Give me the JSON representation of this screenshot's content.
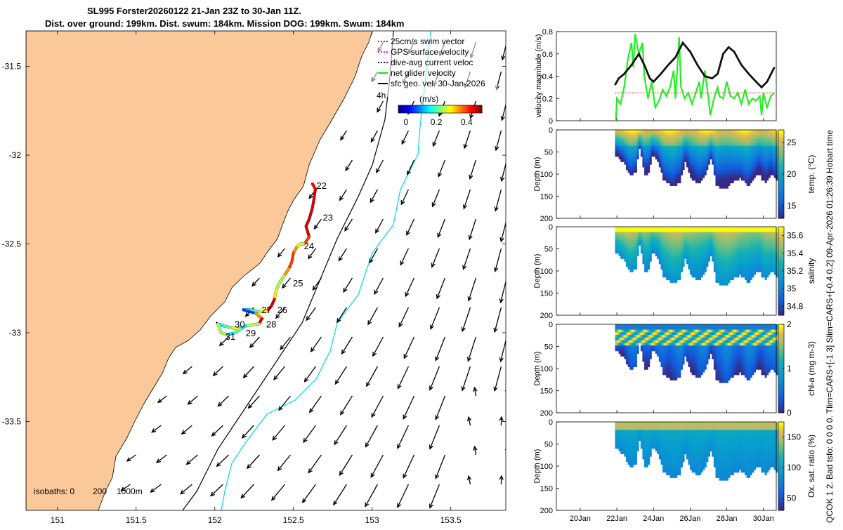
{
  "title_line1": "SL995 Forster20260122 21-Jan 23Z to 30-Jan 11Z.",
  "title_line2": "Dist. over ground: 199km. Dist. swum: 184km. Mission DOG: 199km. Swum: 184km",
  "right_margin_text": "QCOK 1  2. Bad tsfo: 0  0  0  0. Tlim=CARS+[-1 3] Slim=CARS+[-0.4 0.2] 09-Apr-2026 01:26:39 Hobart time",
  "map": {
    "lon_ticks": [
      "151",
      "151.5",
      "152",
      "152.5",
      "153",
      "153.5"
    ],
    "lat_ticks": [
      "-31.5",
      "-32",
      "-32.5",
      "-33",
      "-33.5"
    ],
    "xlim": [
      150.8,
      153.85
    ],
    "ylim": [
      -34.0,
      -31.3
    ],
    "legend": [
      {
        "label": "25cm/s swim vector",
        "color": "#ff0000"
      },
      {
        "label": "GPS surface velocity",
        "color": "#ff00ff"
      },
      {
        "label": "dive-avg current veloc",
        "color": "#0000ff"
      },
      {
        "label": "net glider velocity",
        "color": "#00ee00"
      },
      {
        "label": "sfc geo. vel. 30-Jan-2026",
        "color": "#000000"
      }
    ],
    "vector_scale_label": "4h",
    "colorbar_label": "(m/s)",
    "colorbar_ticks": [
      "0",
      "0.2",
      "0.4"
    ],
    "colorbar_range": [
      -0.05,
      0.5
    ],
    "isobath_label": "isobaths: 0",
    "isobath_200": "200",
    "isobath_1000": "1000m",
    "day_labels": [
      {
        "text": "22",
        "lon": 152.62,
        "lat": -32.17
      },
      {
        "text": "23",
        "lon": 152.66,
        "lat": -32.35
      },
      {
        "text": "24",
        "lon": 152.54,
        "lat": -32.51
      },
      {
        "text": "25",
        "lon": 152.47,
        "lat": -32.72
      },
      {
        "text": "26",
        "lon": 152.37,
        "lat": -32.87
      },
      {
        "text": "27",
        "lon": 152.27,
        "lat": -32.87
      },
      {
        "text": "28",
        "lon": 152.3,
        "lat": -32.95
      },
      {
        "text": "29",
        "lon": 152.17,
        "lat": -33.0
      },
      {
        "text": "30",
        "lon": 152.1,
        "lat": -32.95
      },
      {
        "text": "31",
        "lon": 152.04,
        "lat": -33.02
      }
    ]
  },
  "velocity_panel": {
    "ylabel": "velocity magnitude (m/s)",
    "yticks": [
      "0",
      "0.2",
      "0.4",
      "0.6",
      "0.8"
    ],
    "ylim": [
      0,
      0.8
    ],
    "sfc_geo": [
      [
        21.9,
        0.32
      ],
      [
        22.1,
        0.38
      ],
      [
        22.4,
        0.42
      ],
      [
        22.8,
        0.5
      ],
      [
        23.2,
        0.6
      ],
      [
        23.5,
        0.5
      ],
      [
        23.8,
        0.38
      ],
      [
        24.0,
        0.35
      ],
      [
        24.4,
        0.42
      ],
      [
        24.8,
        0.5
      ],
      [
        25.2,
        0.57
      ],
      [
        25.6,
        0.7
      ],
      [
        26.0,
        0.62
      ],
      [
        26.4,
        0.5
      ],
      [
        26.8,
        0.4
      ],
      [
        27.2,
        0.38
      ],
      [
        27.5,
        0.42
      ],
      [
        27.8,
        0.6
      ],
      [
        28.1,
        0.66
      ],
      [
        28.4,
        0.62
      ],
      [
        28.8,
        0.5
      ],
      [
        29.2,
        0.42
      ],
      [
        29.6,
        0.35
      ],
      [
        29.9,
        0.3
      ],
      [
        30.2,
        0.35
      ],
      [
        30.6,
        0.48
      ]
    ],
    "swim": [
      [
        21.9,
        0.25
      ],
      [
        30.6,
        0.25
      ]
    ],
    "net_glider": [
      [
        21.95,
        0.0
      ],
      [
        22.0,
        0.2
      ],
      [
        22.2,
        0.15
      ],
      [
        22.4,
        0.3
      ],
      [
        22.6,
        0.55
      ],
      [
        22.8,
        0.7
      ],
      [
        22.9,
        0.48
      ],
      [
        23.0,
        0.78
      ],
      [
        23.2,
        0.6
      ],
      [
        23.4,
        0.7
      ],
      [
        23.5,
        0.4
      ],
      [
        23.7,
        0.2
      ],
      [
        23.9,
        0.35
      ],
      [
        24.1,
        0.12
      ],
      [
        24.3,
        0.18
      ],
      [
        24.5,
        0.28
      ],
      [
        24.7,
        0.22
      ],
      [
        24.9,
        0.3
      ],
      [
        25.1,
        0.45
      ],
      [
        25.2,
        0.2
      ],
      [
        25.4,
        0.75
      ],
      [
        25.5,
        0.3
      ],
      [
        25.7,
        0.2
      ],
      [
        25.9,
        0.25
      ],
      [
        26.1,
        0.15
      ],
      [
        26.3,
        0.25
      ],
      [
        26.5,
        0.35
      ],
      [
        26.6,
        0.2
      ],
      [
        26.8,
        0.45
      ],
      [
        27.0,
        0.2
      ],
      [
        27.1,
        0.05
      ],
      [
        27.3,
        0.2
      ],
      [
        27.5,
        0.3
      ],
      [
        27.6,
        0.22
      ],
      [
        27.8,
        0.2
      ],
      [
        28.0,
        0.35
      ],
      [
        28.2,
        0.22
      ],
      [
        28.4,
        0.2
      ],
      [
        28.6,
        0.25
      ],
      [
        28.8,
        0.15
      ],
      [
        29.0,
        0.28
      ],
      [
        29.2,
        0.15
      ],
      [
        29.4,
        0.2
      ],
      [
        29.6,
        0.18
      ],
      [
        29.8,
        0.22
      ],
      [
        29.9,
        0.05
      ],
      [
        30.0,
        0.25
      ],
      [
        30.2,
        0.12
      ],
      [
        30.4,
        0.22
      ],
      [
        30.6,
        0.25
      ]
    ]
  },
  "sections": [
    {
      "id": "temp",
      "cbar_label": "temp. (°C)",
      "cbar_ticks": [
        "15",
        "20",
        "25"
      ],
      "cbar_range": [
        13,
        27
      ],
      "clim_ticks": [
        15,
        20,
        25
      ]
    },
    {
      "id": "sal",
      "cbar_label": "salinity",
      "cbar_ticks": [
        "34.8",
        "35",
        "35.2",
        "35.4",
        "35.6"
      ],
      "cbar_range": [
        34.7,
        35.7
      ],
      "clim_ticks": [
        34.8,
        35,
        35.2,
        35.4,
        35.6
      ]
    },
    {
      "id": "chl",
      "cbar_label": "chl-a (mg m-3)",
      "cbar_ticks": [
        "0",
        "1",
        "2"
      ],
      "cbar_range": [
        0,
        2
      ],
      "clim_ticks": [
        0,
        1,
        2
      ]
    },
    {
      "id": "oxy",
      "cbar_label": "Ox. sat. ratio (%)",
      "cbar_ticks": [
        "50",
        "100",
        "150"
      ],
      "cbar_range": [
        30,
        175
      ],
      "clim_ticks": [
        50,
        100,
        150
      ]
    }
  ],
  "depth_label": "Depth (m)",
  "depth_ticks": [
    "0",
    "50",
    "100",
    "150",
    "200"
  ],
  "depth_range": [
    0,
    200
  ],
  "time_ticks": [
    "20Jan",
    "22Jan",
    "24Jan",
    "26Jan",
    "28Jan",
    "30Jan"
  ],
  "time_range": [
    18.7,
    30.7
  ],
  "data_start_day": 21.9
}
